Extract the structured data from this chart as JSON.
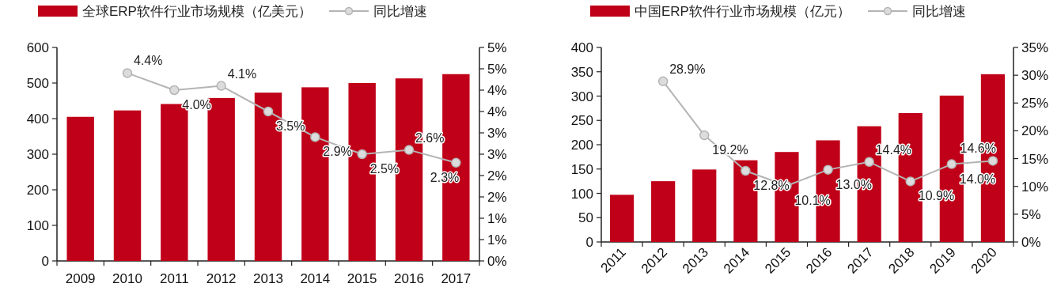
{
  "chart_data": [
    {
      "type": "bar",
      "categories": [
        "2009",
        "2010",
        "2011",
        "2012",
        "2013",
        "2014",
        "2015",
        "2016",
        "2017"
      ],
      "series": [
        {
          "name": "全球ERP软件行业市场规模（亿美元）",
          "color": "#c00018",
          "values": [
            405,
            423,
            441,
            458,
            473,
            488,
            500,
            513,
            525
          ]
        },
        {
          "name": "同比增速",
          "type": "line",
          "axis": "y2",
          "color": "#b4b4b4",
          "marker": "circle",
          "values": [
            null,
            4.4,
            4.0,
            4.1,
            3.5,
            2.9,
            2.5,
            2.6,
            2.3
          ],
          "value_labels": [
            null,
            "4.4%",
            "4.0%",
            "4.1%",
            "3.5%",
            "2.9%",
            "2.5%",
            "2.6%",
            "2.3%"
          ]
        }
      ],
      "ylim": [
        0,
        600
      ],
      "yticks": [
        0,
        100,
        200,
        300,
        400,
        500,
        600
      ],
      "y2lim": [
        0,
        5
      ],
      "y2ticks": [
        {
          "value": 0,
          "label": "0%"
        },
        {
          "value": 0.5,
          "label": "1%"
        },
        {
          "value": 1,
          "label": "1%"
        },
        {
          "value": 1.5,
          "label": "2%"
        },
        {
          "value": 2,
          "label": "2%"
        },
        {
          "value": 2.5,
          "label": "3%"
        },
        {
          "value": 3,
          "label": "3%"
        },
        {
          "value": 3.5,
          "label": "4%"
        },
        {
          "value": 4,
          "label": "4%"
        },
        {
          "value": 4.5,
          "label": "5%"
        },
        {
          "value": 5,
          "label": "5%"
        }
      ],
      "legend": "top"
    },
    {
      "type": "bar",
      "categories": [
        "2011",
        "2012",
        "2013",
        "2014",
        "2015",
        "2016",
        "2017",
        "2018",
        "2019",
        "2020"
      ],
      "series": [
        {
          "name": "中国ERP软件行业市场规模（亿元）",
          "color": "#c00018",
          "values": [
            97,
            125,
            149,
            168,
            185,
            209,
            238,
            265,
            301,
            345
          ]
        },
        {
          "name": "同比增速",
          "type": "line",
          "axis": "y2",
          "color": "#b4b4b4",
          "marker": "circle",
          "values": [
            null,
            28.9,
            19.2,
            12.8,
            10.1,
            13.0,
            14.4,
            10.9,
            14.0,
            14.6
          ],
          "value_labels": [
            null,
            "28.9%",
            "19.2%",
            "12.8%",
            "10.1%",
            "13.0%",
            "14.4%",
            "10.9%",
            "14.0%",
            "14.6%"
          ]
        }
      ],
      "ylim": [
        0,
        400
      ],
      "yticks": [
        0,
        50,
        100,
        150,
        200,
        250,
        300,
        350,
        400
      ],
      "y2lim": [
        0,
        35
      ],
      "y2ticks": [
        {
          "value": 0,
          "label": "0%"
        },
        {
          "value": 5,
          "label": "5%"
        },
        {
          "value": 10,
          "label": "10%"
        },
        {
          "value": 15,
          "label": "15%"
        },
        {
          "value": 20,
          "label": "20%"
        },
        {
          "value": 25,
          "label": "25%"
        },
        {
          "value": 30,
          "label": "30%"
        },
        {
          "value": 35,
          "label": "35%"
        }
      ],
      "legend": "top"
    }
  ]
}
